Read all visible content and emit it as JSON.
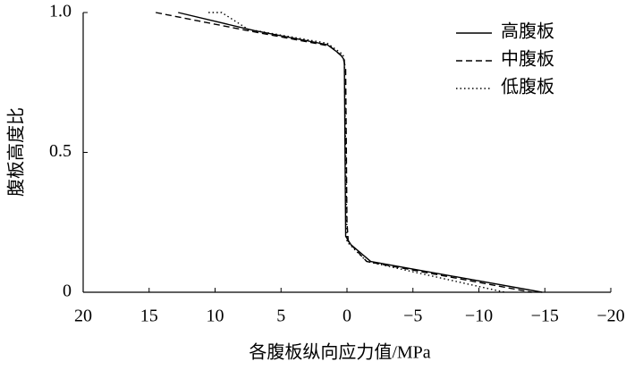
{
  "chart_data": {
    "type": "line",
    "x_label": "各腹板纵向应力值/MPa",
    "y_label": "腹板高度比",
    "xlim": [
      20,
      -20
    ],
    "xticks": [
      20,
      15,
      10,
      5,
      0,
      {
        "value": -5,
        "label": "−5"
      },
      {
        "value": -10,
        "label": "−10"
      },
      {
        "value": -15,
        "label": "−15"
      },
      {
        "value": -20,
        "label": "−20"
      }
    ],
    "ylim": [
      0,
      1
    ],
    "yticks": [
      0,
      0.5,
      {
        "value": 1,
        "label": "1.0"
      }
    ],
    "legend_position": "upper-right",
    "series": [
      {
        "name": "高腹板",
        "color": "#000000",
        "line_style": "solid",
        "x": [
          12.8,
          7,
          1.5,
          0.5,
          0.2,
          0.1,
          -0.3,
          -1.8,
          -14.8
        ],
        "values": [
          1.0,
          0.935,
          0.885,
          0.85,
          0.83,
          0.2,
          0.17,
          0.11,
          0
        ]
      },
      {
        "name": "中腹板",
        "color": "#000000",
        "line_style": "dashed",
        "x": [
          14.5,
          7.5,
          1.3,
          0.3,
          0.1,
          0,
          -0.1,
          -0.5,
          -1.5,
          -14
        ],
        "values": [
          1.0,
          0.935,
          0.88,
          0.84,
          0.8,
          0.25,
          0.18,
          0.16,
          0.11,
          0
        ]
      },
      {
        "name": "低腹板",
        "color": "#000000",
        "line_style": "dotted",
        "x": [
          10.5,
          9.5,
          7.5,
          1.5,
          0.3,
          0.2,
          0,
          -1.5,
          -11,
          -12
        ],
        "values": [
          1.0,
          1.0,
          0.94,
          0.89,
          0.85,
          0.82,
          0.18,
          0.11,
          0.01,
          0
        ]
      }
    ]
  }
}
